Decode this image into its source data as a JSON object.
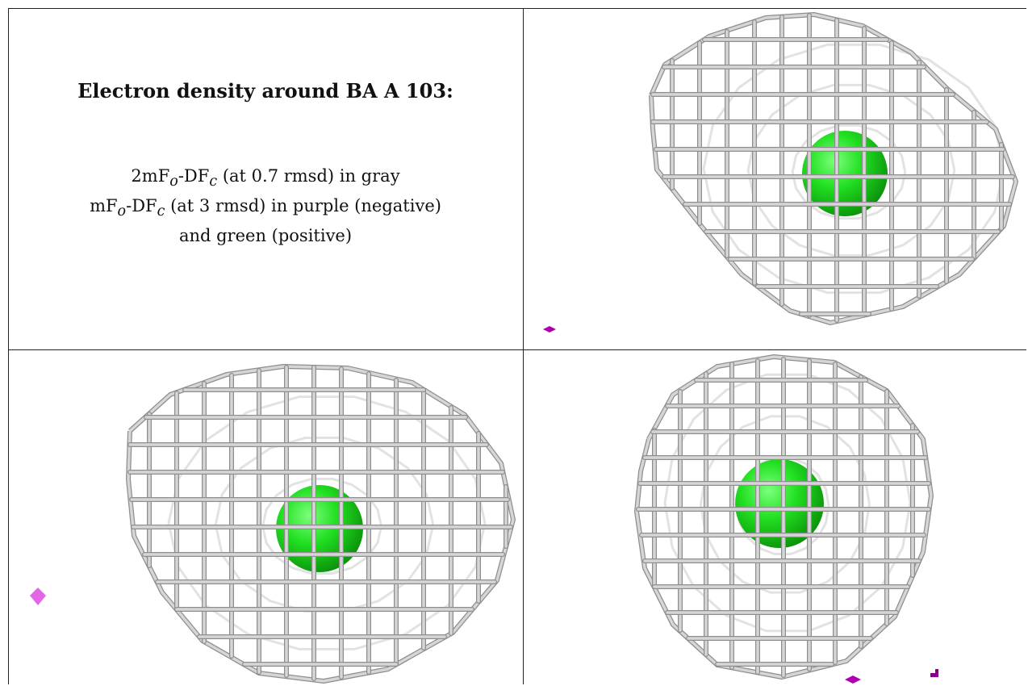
{
  "caption": {
    "title": "Electron density around BA A 103:",
    "line1_prefix": "2mF",
    "line1_sub_o": "o",
    "line1_mid": "-DF",
    "line1_sub_c": "c",
    "line1_suffix": " (at 0.7 rmsd) in gray",
    "line2_prefix": "mF",
    "line2_sub_o": "o",
    "line2_mid": "-DF",
    "line2_sub_c": "c",
    "line2_suffix": " (at 3 rmsd) in purple (negative)",
    "line3": "and green (positive)"
  },
  "colors": {
    "mesh_light": "#d6d6d6",
    "mesh_dark": "#8e8e8e",
    "atom_green": "#19e619",
    "negative_purple": "#b000b0",
    "negative_pink": "#e466e4",
    "border": "#222222"
  },
  "views": [
    {
      "name": "view-top-right",
      "icon": "density-mesh"
    },
    {
      "name": "view-bottom-left",
      "icon": "density-mesh"
    },
    {
      "name": "view-bottom-right",
      "icon": "density-mesh"
    }
  ]
}
